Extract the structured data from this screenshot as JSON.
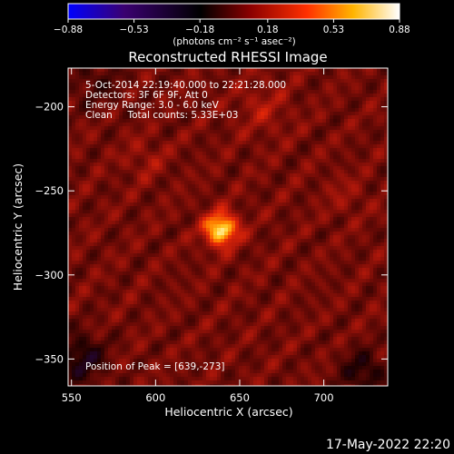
{
  "chart_data": {
    "type": "heatmap",
    "title": "Reconstructed RHESSI Image",
    "xlabel": "Heliocentric X (arcsec)",
    "ylabel": "Heliocentric Y (arcsec)",
    "x_ticks": [
      "550",
      "600",
      "650",
      "700"
    ],
    "x_tick_values": [
      550,
      600,
      650,
      700
    ],
    "y_ticks": [
      "−200",
      "−250",
      "−300",
      "−350"
    ],
    "y_tick_values": [
      -200,
      -250,
      -300,
      -350
    ],
    "xlim": [
      548,
      738
    ],
    "ylim": [
      -366,
      -177
    ],
    "colorbar": {
      "label": "(photons cm⁻² s⁻¹ asec⁻²)",
      "range": [
        -0.88,
        0.88
      ],
      "ticks": [
        "−0.88",
        "−0.53",
        "−0.18",
        "0.18",
        "0.53",
        "0.88"
      ],
      "tick_values": [
        -0.88,
        -0.53,
        -0.18,
        0.18,
        0.53,
        0.88
      ],
      "colors": [
        "#0000ff",
        "#3a0070",
        "#000000",
        "#8b0000",
        "#ff3000",
        "#ffb400",
        "#ffffff"
      ]
    },
    "annotations": [
      "5-Oct-2014 22:19:40.000 to 22:21:28.000",
      "Detectors: 3F 6F 9F, Att 0",
      "Energy Range: 3.0 - 6.0 keV",
      "Clean     Total counts: 5.33E+03",
      "Position of Peak = [639,-273]"
    ],
    "peak": {
      "x": 639,
      "y": -273
    },
    "footer_date": "17-May-2022 22:20"
  }
}
